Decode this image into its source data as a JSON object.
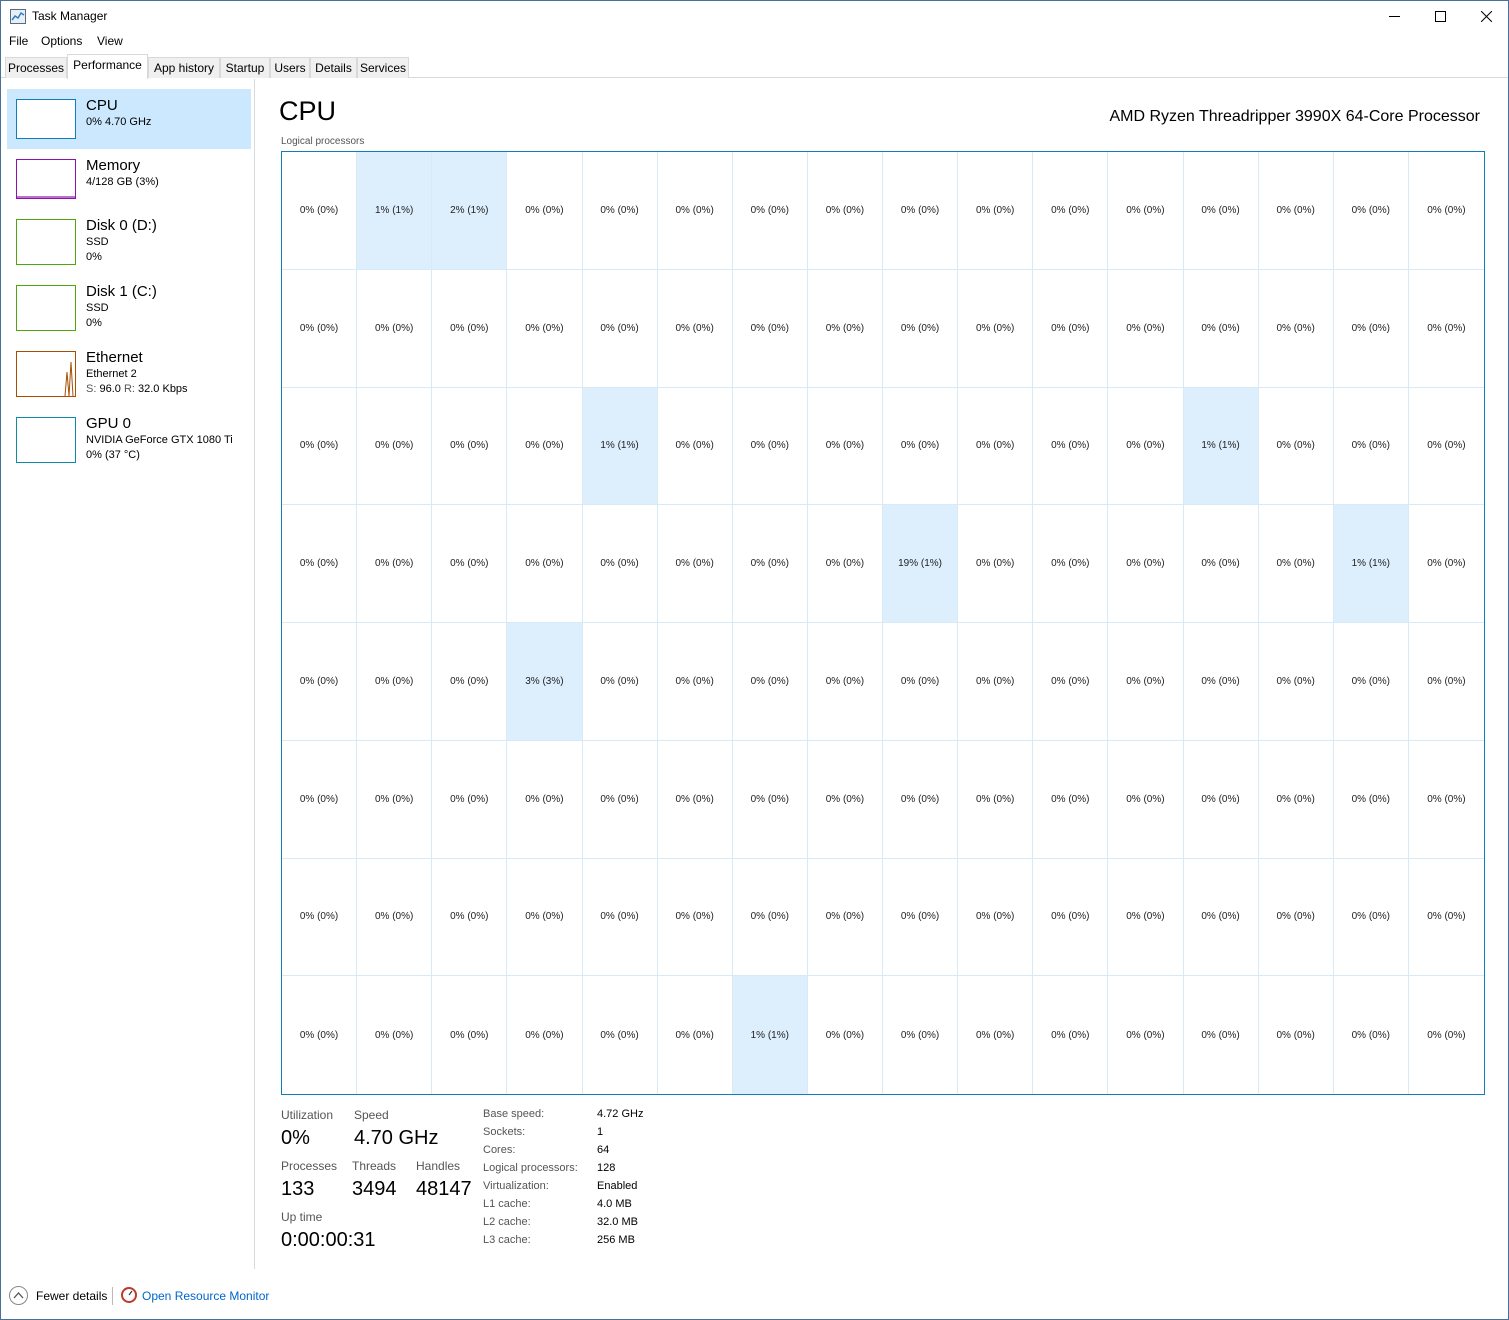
{
  "window": {
    "title": "Task Manager"
  },
  "menu": [
    "File",
    "Options",
    "View"
  ],
  "tabs": [
    "Processes",
    "Performance",
    "App history",
    "Startup",
    "Users",
    "Details",
    "Services"
  ],
  "sidebar": {
    "cpu": {
      "title": "CPU",
      "sub": "0% 4.70 GHz",
      "color": "#117dbb"
    },
    "memory": {
      "title": "Memory",
      "sub": "4/128 GB (3%)",
      "color": "#8b12ae"
    },
    "disk0": {
      "title": "Disk 0 (D:)",
      "sub1": "SSD",
      "sub2": "0%",
      "color": "#4da60c"
    },
    "disk1": {
      "title": "Disk 1 (C:)",
      "sub1": "SSD",
      "sub2": "0%",
      "color": "#4da60c"
    },
    "ethernet": {
      "title": "Ethernet",
      "sub1": "Ethernet 2",
      "s_label": "S:",
      "s_value": "96.0",
      "r_label": "R:",
      "r_value": "32.0 Kbps",
      "color": "#a74f01"
    },
    "gpu": {
      "title": "GPU 0",
      "sub1": "NVIDIA GeForce GTX 1080 Ti",
      "sub2": "0% (37 °C)",
      "color": "#0e8ba7"
    }
  },
  "main": {
    "title": "CPU",
    "processor": "AMD Ryzen Threadripper 3990X 64-Core Processor",
    "grid_label": "Logical processors",
    "cells": [
      "0% (0%)",
      "1% (1%)",
      "2% (1%)",
      "0% (0%)",
      "0% (0%)",
      "0% (0%)",
      "0% (0%)",
      "0% (0%)",
      "0% (0%)",
      "0% (0%)",
      "0% (0%)",
      "0% (0%)",
      "0% (0%)",
      "0% (0%)",
      "0% (0%)",
      "0% (0%)",
      "0% (0%)",
      "0% (0%)",
      "0% (0%)",
      "0% (0%)",
      "0% (0%)",
      "0% (0%)",
      "0% (0%)",
      "0% (0%)",
      "0% (0%)",
      "0% (0%)",
      "0% (0%)",
      "0% (0%)",
      "0% (0%)",
      "0% (0%)",
      "0% (0%)",
      "0% (0%)",
      "0% (0%)",
      "0% (0%)",
      "0% (0%)",
      "0% (0%)",
      "1% (1%)",
      "0% (0%)",
      "0% (0%)",
      "0% (0%)",
      "0% (0%)",
      "0% (0%)",
      "0% (0%)",
      "0% (0%)",
      "1% (1%)",
      "0% (0%)",
      "0% (0%)",
      "0% (0%)",
      "0% (0%)",
      "0% (0%)",
      "0% (0%)",
      "0% (0%)",
      "0% (0%)",
      "0% (0%)",
      "0% (0%)",
      "0% (0%)",
      "19% (1%)",
      "0% (0%)",
      "0% (0%)",
      "0% (0%)",
      "0% (0%)",
      "0% (0%)",
      "1% (1%)",
      "0% (0%)",
      "0% (0%)",
      "0% (0%)",
      "0% (0%)",
      "3% (3%)",
      "0% (0%)",
      "0% (0%)",
      "0% (0%)",
      "0% (0%)",
      "0% (0%)",
      "0% (0%)",
      "0% (0%)",
      "0% (0%)",
      "0% (0%)",
      "0% (0%)",
      "0% (0%)",
      "0% (0%)",
      "0% (0%)",
      "0% (0%)",
      "0% (0%)",
      "0% (0%)",
      "0% (0%)",
      "0% (0%)",
      "0% (0%)",
      "0% (0%)",
      "0% (0%)",
      "0% (0%)",
      "0% (0%)",
      "0% (0%)",
      "0% (0%)",
      "0% (0%)",
      "0% (0%)",
      "0% (0%)",
      "0% (0%)",
      "0% (0%)",
      "0% (0%)",
      "0% (0%)",
      "0% (0%)",
      "0% (0%)",
      "0% (0%)",
      "0% (0%)",
      "0% (0%)",
      "0% (0%)",
      "0% (0%)",
      "0% (0%)",
      "0% (0%)",
      "0% (0%)",
      "0% (0%)",
      "0% (0%)",
      "0% (0%)",
      "0% (0%)",
      "0% (0%)",
      "0% (0%)",
      "0% (0%)",
      "0% (0%)",
      "1% (1%)",
      "0% (0%)",
      "0% (0%)",
      "0% (0%)",
      "0% (0%)",
      "0% (0%)",
      "0% (0%)",
      "0% (0%)",
      "0% (0%)",
      "0% (0%)"
    ]
  },
  "stats": {
    "utilization_label": "Utilization",
    "utilization": "0%",
    "speed_label": "Speed",
    "speed": "4.70 GHz",
    "processes_label": "Processes",
    "processes": "133",
    "threads_label": "Threads",
    "threads": "3494",
    "handles_label": "Handles",
    "handles": "48147",
    "uptime_label": "Up time",
    "uptime": "0:00:00:31"
  },
  "specs": [
    {
      "label": "Base speed:",
      "value": "4.72 GHz"
    },
    {
      "label": "Sockets:",
      "value": "1"
    },
    {
      "label": "Cores:",
      "value": "64"
    },
    {
      "label": "Logical processors:",
      "value": "128"
    },
    {
      "label": "Virtualization:",
      "value": "Enabled"
    },
    {
      "label": "L1 cache:",
      "value": "4.0 MB"
    },
    {
      "label": "L2 cache:",
      "value": "32.0 MB"
    },
    {
      "label": "L3 cache:",
      "value": "256 MB"
    }
  ],
  "footer": {
    "fewer_details": "Fewer details",
    "resource_monitor": "Open Resource Monitor"
  }
}
